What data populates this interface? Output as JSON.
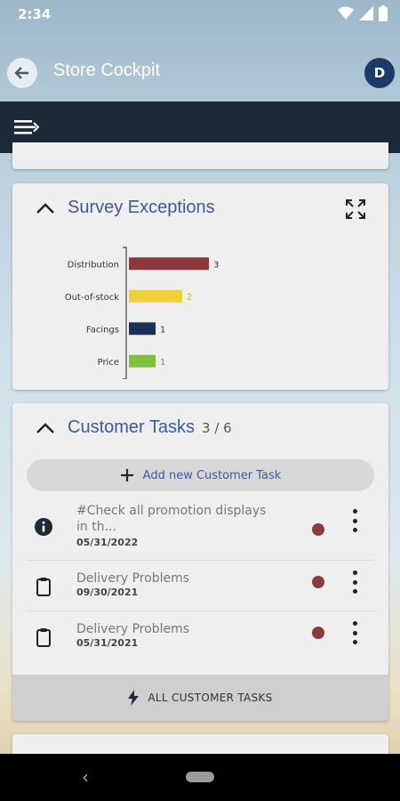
{
  "status_bar": {
    "time": "2:34"
  },
  "app_bar": {
    "title": "Store Cockpit",
    "avatar_letter": "D"
  },
  "survey": {
    "title": "Survey Exceptions"
  },
  "chart_data": {
    "type": "bar",
    "orientation": "horizontal",
    "categories": [
      "Distribution",
      "Out-of-stock",
      "Facings",
      "Price"
    ],
    "values": [
      3,
      2,
      1,
      1
    ],
    "colors": [
      "#8b3b3b",
      "#f0cf3a",
      "#1c2f5c",
      "#7cc23a"
    ],
    "xlim": [
      0,
      3
    ],
    "title": "",
    "xlabel": "",
    "ylabel": ""
  },
  "tasks": {
    "title": "Customer Tasks",
    "count": "3 / 6",
    "add_label": "Add new Customer Task",
    "items": [
      {
        "title": "#Check all promotion displays in th...",
        "date": "05/31/2022",
        "icon": "info-icon"
      },
      {
        "title": "Delivery Problems",
        "date": "09/30/2021",
        "icon": "clipboard-icon"
      },
      {
        "title": "Delivery Problems",
        "date": "05/31/2021",
        "icon": "clipboard-icon"
      }
    ],
    "all_label": "ALL CUSTOMER TASKS",
    "status_color": "#8b3b3b"
  },
  "theme": {
    "accent": "#3b5a9a",
    "toolbar": "#1c2a38"
  }
}
